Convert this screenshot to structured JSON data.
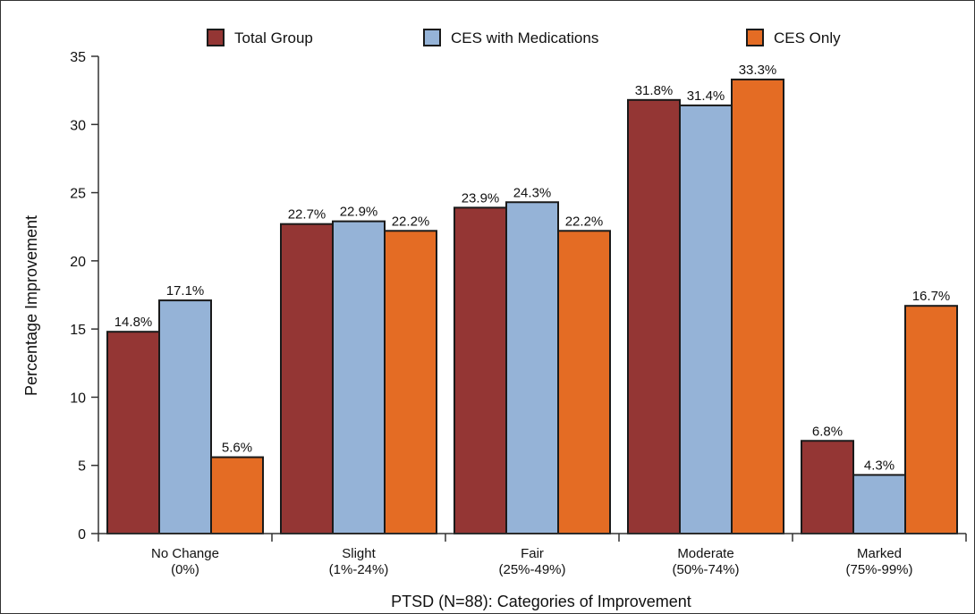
{
  "chart_data": {
    "type": "bar",
    "title": "",
    "xlabel": "PTSD (N=88): Categories of Improvement",
    "ylabel": "Percentage Improvement",
    "ylim": [
      0,
      35
    ],
    "yticks": [
      0,
      5,
      10,
      15,
      20,
      25,
      30,
      35
    ],
    "grid": false,
    "legend_position": "top",
    "categories": [
      {
        "name": "No Change",
        "range": "(0%)"
      },
      {
        "name": "Slight",
        "range": "(1%-24%)"
      },
      {
        "name": "Fair",
        "range": "(25%-49%)"
      },
      {
        "name": "Moderate",
        "range": "(50%-74%)"
      },
      {
        "name": "Marked",
        "range": "(75%-99%)"
      }
    ],
    "series": [
      {
        "name": "Total Group",
        "color": "#943634",
        "values": [
          14.8,
          22.7,
          23.9,
          31.8,
          6.8
        ],
        "labels": [
          "14.8%",
          "22.7%",
          "23.9%",
          "31.8%",
          "6.8%"
        ]
      },
      {
        "name": "CES with Medications",
        "color": "#95b3d7",
        "values": [
          17.1,
          22.9,
          24.3,
          31.4,
          4.3
        ],
        "labels": [
          "17.1%",
          "22.9%",
          "24.3%",
          "31.4%",
          "4.3%"
        ]
      },
      {
        "name": "CES Only",
        "color": "#e46c24",
        "values": [
          5.6,
          22.2,
          22.2,
          33.3,
          16.7
        ],
        "labels": [
          "5.6%",
          "22.2%",
          "22.2%",
          "33.3%",
          "16.7%"
        ]
      }
    ]
  }
}
